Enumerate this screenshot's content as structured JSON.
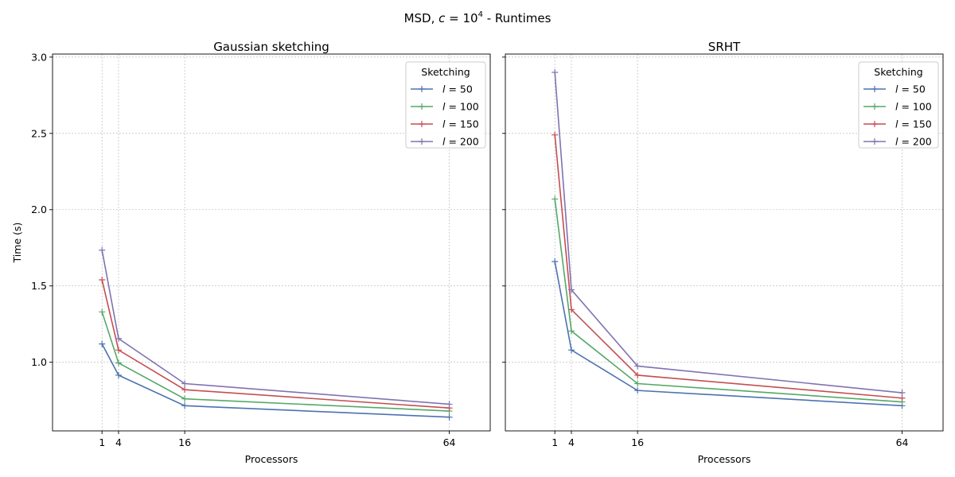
{
  "figure": {
    "suptitle_prefix": "MSD, ",
    "suptitle_c": "c",
    "suptitle_eq": " = 10",
    "suptitle_exp": "4",
    "suptitle_suffix": " - Runtimes"
  },
  "colors": {
    "l50": "#4c72b0",
    "l100": "#55a868",
    "l150": "#c44e52",
    "l200": "#8172b2",
    "grid": "#b0b0b0"
  },
  "chart_data": [
    {
      "type": "line",
      "title": "Gaussian sketching",
      "xlabel": "Processors",
      "ylabel": "Time (s)",
      "x": [
        1,
        4,
        16,
        64
      ],
      "xticks": [
        "1",
        "4",
        "16",
        "64"
      ],
      "yticks": [
        "1.0",
        "1.5",
        "2.0",
        "2.5",
        "3.0"
      ],
      "ylim": [
        0.55,
        3.02
      ],
      "grid": true,
      "legend_title": "Sketching",
      "legend_position": "upper right",
      "series": [
        {
          "name": "l = 50",
          "var": "l",
          "val": "50",
          "color_key": "l50",
          "values": [
            1.12,
            0.915,
            0.715,
            0.64
          ]
        },
        {
          "name": "l = 100",
          "var": "l",
          "val": "100",
          "color_key": "l100",
          "values": [
            1.33,
            0.995,
            0.76,
            0.68
          ]
        },
        {
          "name": "l = 150",
          "var": "l",
          "val": "150",
          "color_key": "l150",
          "values": [
            1.54,
            1.08,
            0.82,
            0.7
          ]
        },
        {
          "name": "l = 200",
          "var": "l",
          "val": "200",
          "color_key": "l200",
          "values": [
            1.735,
            1.155,
            0.86,
            0.725
          ]
        }
      ]
    },
    {
      "type": "line",
      "title": "SRHT",
      "xlabel": "Processors",
      "ylabel": "",
      "x": [
        1,
        4,
        16,
        64
      ],
      "xticks": [
        "1",
        "4",
        "16",
        "64"
      ],
      "yticks": [],
      "ylim": [
        0.55,
        3.02
      ],
      "grid": true,
      "legend_title": "Sketching",
      "legend_position": "upper right",
      "series": [
        {
          "name": "l = 50",
          "var": "l",
          "val": "50",
          "color_key": "l50",
          "values": [
            1.66,
            1.08,
            0.815,
            0.715
          ]
        },
        {
          "name": "l = 100",
          "var": "l",
          "val": "100",
          "color_key": "l100",
          "values": [
            2.07,
            1.205,
            0.86,
            0.74
          ]
        },
        {
          "name": "l = 150",
          "var": "l",
          "val": "150",
          "color_key": "l150",
          "values": [
            2.49,
            1.345,
            0.915,
            0.765
          ]
        },
        {
          "name": "l = 200",
          "var": "l",
          "val": "200",
          "color_key": "l200",
          "values": [
            2.9,
            1.475,
            0.975,
            0.8
          ]
        }
      ]
    }
  ]
}
